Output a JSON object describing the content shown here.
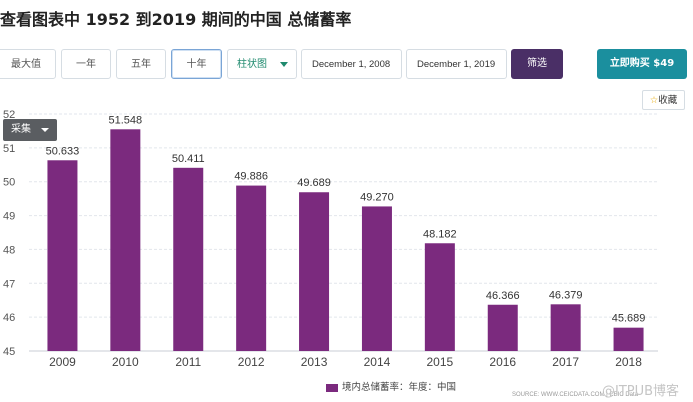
{
  "page": {
    "title": "查看图表中 1952 到2019 期间的中国 总储蓄率"
  },
  "toolbar": {
    "range_buttons": [
      "最大值",
      "一年",
      "五年",
      "十年"
    ],
    "active_range": "十年",
    "chart_type": "柱状图",
    "start_date": "December 1, 2008",
    "end_date": "December 1, 2019",
    "filter_label": "筛选",
    "buy_label": "立即购买 $49"
  },
  "favorite": {
    "label": "收藏"
  },
  "collect": {
    "label": "采集"
  },
  "legend": {
    "label": "境内总储蓄率：年度：中国"
  },
  "source": "SOURCE: WWW.CEICDATA.COM | CEIC Data",
  "watermark": "@ITPUB博客",
  "colors": {
    "bar": "#7b2a7e",
    "grid": "#e2e6ec",
    "accent": "#1b8f9e"
  },
  "chart_data": {
    "type": "bar",
    "categories": [
      "2009",
      "2010",
      "2011",
      "2012",
      "2013",
      "2014",
      "2015",
      "2016",
      "2017",
      "2018"
    ],
    "series": [
      {
        "name": "境内总储蓄率：年度：中国",
        "values": [
          50.633,
          51.548,
          50.411,
          49.886,
          49.689,
          49.27,
          48.182,
          46.366,
          46.379,
          45.689
        ]
      }
    ],
    "data_labels": [
      "50.633",
      "51.548",
      "50.411",
      "49.886",
      "49.689",
      "49.270",
      "48.182",
      "46.366",
      "46.379",
      "45.689"
    ],
    "yticks": [
      "45",
      "46",
      "47",
      "48",
      "49",
      "50",
      "51",
      "52"
    ],
    "ylim": [
      45,
      52
    ],
    "grid": true,
    "legend_position": "bottom-center"
  }
}
